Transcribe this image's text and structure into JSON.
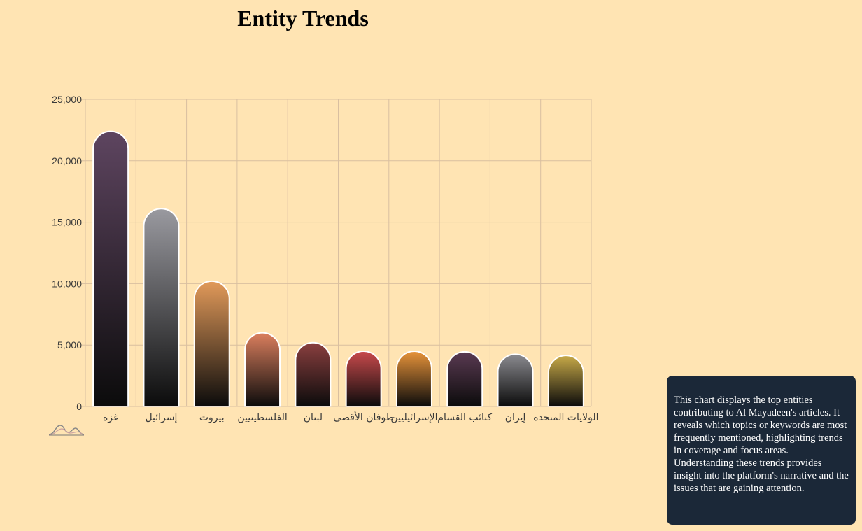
{
  "title": "Entity Trends",
  "description": "This chart displays the top entities contributing to Al Mayadeen's articles. It reveals which topics or keywords are most frequently mentioned, highlighting trends in coverage and focus areas. Understanding these trends provides insight into the platform's narrative and the issues that are gaining attention.",
  "icons": {
    "mini_chart": "wave-chart-icon"
  },
  "colors": {
    "background": "#ffe4b3",
    "grid": "#d9bfa0",
    "card_bg": "#1b2838"
  },
  "chart_data": {
    "type": "bar",
    "title": "Entity Trends",
    "xlabel": "",
    "ylabel": "",
    "ylim": [
      0,
      25000
    ],
    "y_ticks": [
      0,
      5000,
      10000,
      15000,
      20000,
      25000
    ],
    "y_tick_labels": [
      "0",
      "5,000",
      "10,000",
      "15,000",
      "20,000",
      "25,000"
    ],
    "grid": true,
    "categories": [
      "غزة",
      "إسرائيل",
      "بيروت",
      "الفلسطينيين",
      "لبنان",
      "طوفان الأقصى",
      "الإسرائيليين",
      "كتائب القسام",
      "إيران",
      "الولايات المتحدة"
    ],
    "values": [
      22400,
      16100,
      10200,
      6000,
      5200,
      4500,
      4500,
      4450,
      4250,
      4150
    ],
    "bar_colors": [
      "#5e4560",
      "#9a9aa0",
      "#e29a5a",
      "#db7f5e",
      "#8a3f3f",
      "#c94a4c",
      "#e8943a",
      "#5a3a52",
      "#8b8b90",
      "#c8aa48"
    ]
  }
}
